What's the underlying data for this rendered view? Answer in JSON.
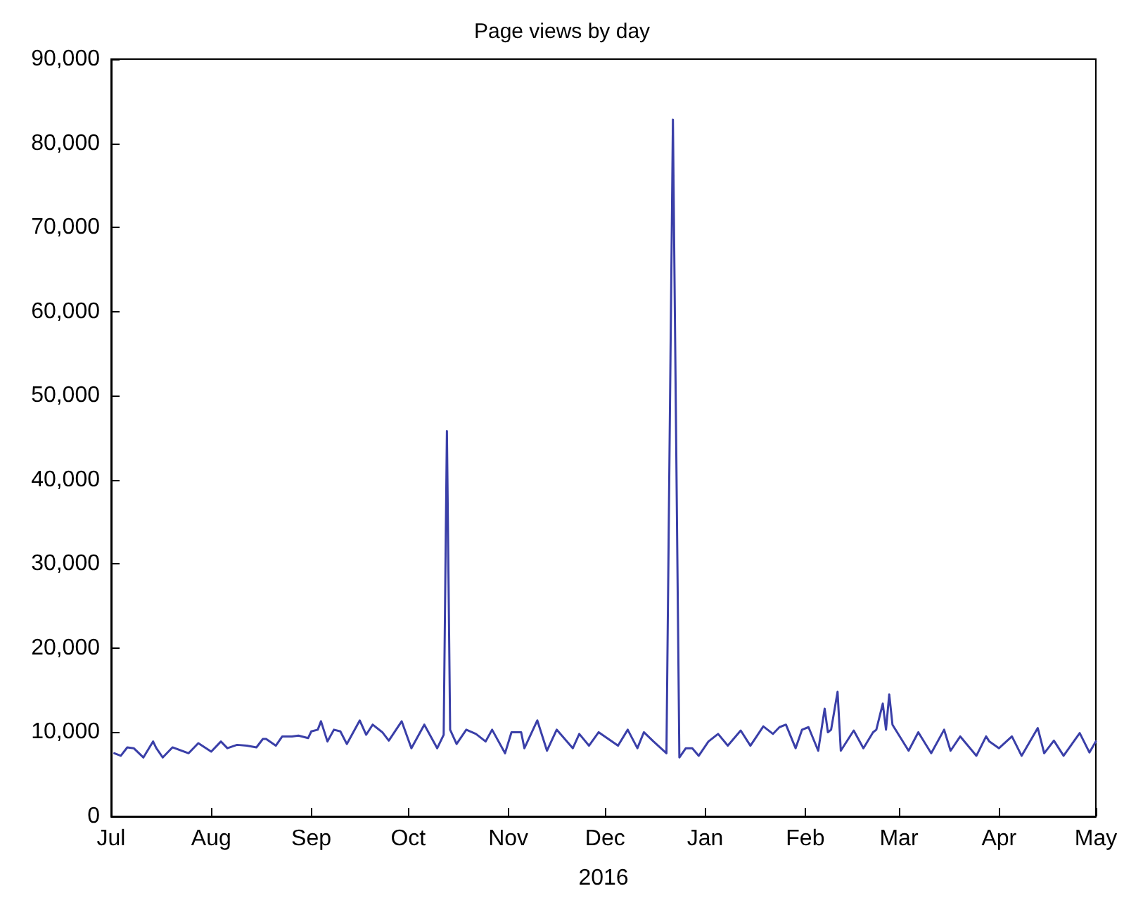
{
  "chart_data": {
    "type": "line",
    "title": "Page views by day",
    "xlabel": "2016",
    "x": [
      "2015-07-02",
      "2015-07-04",
      "2015-07-06",
      "2015-07-08",
      "2015-07-11",
      "2015-07-14",
      "2015-07-15",
      "2015-07-17",
      "2015-07-20",
      "2015-07-25",
      "2015-07-28",
      "2015-08-01",
      "2015-08-04",
      "2015-08-06",
      "2015-08-09",
      "2015-08-12",
      "2015-08-15",
      "2015-08-17",
      "2015-08-18",
      "2015-08-21",
      "2015-08-23",
      "2015-08-26",
      "2015-08-28",
      "2015-08-31",
      "2015-09-01",
      "2015-09-03",
      "2015-09-04",
      "2015-09-06",
      "2015-09-08",
      "2015-09-10",
      "2015-09-12",
      "2015-09-14",
      "2015-09-16",
      "2015-09-18",
      "2015-09-20",
      "2015-09-23",
      "2015-09-25",
      "2015-09-29",
      "2015-10-02",
      "2015-10-06",
      "2015-10-10",
      "2015-10-12",
      "2015-10-13",
      "2015-10-14",
      "2015-10-16",
      "2015-10-19",
      "2015-10-22",
      "2015-10-25",
      "2015-10-27",
      "2015-10-31",
      "2015-11-02",
      "2015-11-05",
      "2015-11-06",
      "2015-11-10",
      "2015-11-13",
      "2015-11-16",
      "2015-11-21",
      "2015-11-23",
      "2015-11-26",
      "2015-11-29",
      "2015-12-05",
      "2015-12-08",
      "2015-12-11",
      "2015-12-13",
      "2015-12-16",
      "2015-12-20",
      "2015-12-22",
      "2015-12-24",
      "2015-12-26",
      "2015-12-28",
      "2015-12-30",
      "2016-01-02",
      "2016-01-05",
      "2016-01-08",
      "2016-01-12",
      "2016-01-15",
      "2016-01-19",
      "2016-01-22",
      "2016-01-24",
      "2016-01-26",
      "2016-01-29",
      "2016-01-31",
      "2016-02-02",
      "2016-02-05",
      "2016-02-07",
      "2016-02-08",
      "2016-02-09",
      "2016-02-11",
      "2016-02-12",
      "2016-02-16",
      "2016-02-19",
      "2016-02-22",
      "2016-02-23",
      "2016-02-25",
      "2016-02-26",
      "2016-02-27",
      "2016-02-28",
      "2016-03-04",
      "2016-03-07",
      "2016-03-11",
      "2016-03-15",
      "2016-03-17",
      "2016-03-20",
      "2016-03-25",
      "2016-03-28",
      "2016-03-29",
      "2016-04-01",
      "2016-04-05",
      "2016-04-08",
      "2016-04-13",
      "2016-04-15",
      "2016-04-18",
      "2016-04-21",
      "2016-04-26",
      "2016-04-29",
      "2016-05-01"
    ],
    "series": [
      {
        "color": "#3a3fa8",
        "values": [
          7500,
          7200,
          8200,
          8100,
          7000,
          8900,
          8100,
          7000,
          8200,
          7500,
          8700,
          7700,
          8900,
          8100,
          8500,
          8400,
          8200,
          9200,
          9200,
          8400,
          9500,
          9500,
          9600,
          9300,
          10100,
          10300,
          11300,
          8900,
          10300,
          10100,
          8600,
          10000,
          11400,
          9700,
          10900,
          10000,
          9000,
          11300,
          8100,
          10900,
          8100,
          9700,
          45800,
          10300,
          8600,
          10300,
          9800,
          8900,
          10300,
          7500,
          10000,
          10000,
          8100,
          11400,
          7800,
          10300,
          8100,
          9800,
          8400,
          10000,
          8400,
          10300,
          8100,
          10000,
          8900,
          7500,
          82800,
          7000,
          8100,
          8100,
          7200,
          8900,
          9800,
          8400,
          10200,
          8400,
          10700,
          9800,
          10600,
          10900,
          8100,
          10300,
          10600,
          7800,
          12800,
          10000,
          10300,
          14800,
          7800,
          10200,
          8100,
          10000,
          10300,
          13400,
          10300,
          14500,
          10900,
          7800,
          10000,
          7500,
          10300,
          7800,
          9500,
          7200,
          9500,
          8900,
          8100,
          9500,
          7200,
          10500,
          7500,
          9000,
          7200,
          9900,
          7600,
          8900
        ]
      }
    ],
    "xlim": [
      "2015-07-01",
      "2016-05-01"
    ],
    "xticks": [
      {
        "value": "2015-07-01",
        "label": "Jul"
      },
      {
        "value": "2015-08-01",
        "label": "Aug"
      },
      {
        "value": "2015-09-01",
        "label": "Sep"
      },
      {
        "value": "2015-10-01",
        "label": "Oct"
      },
      {
        "value": "2015-11-01",
        "label": "Nov"
      },
      {
        "value": "2015-12-01",
        "label": "Dec"
      },
      {
        "value": "2016-01-01",
        "label": "Jan"
      },
      {
        "value": "2016-02-01",
        "label": "Feb"
      },
      {
        "value": "2016-03-01",
        "label": "Mar"
      },
      {
        "value": "2016-04-01",
        "label": "Apr"
      },
      {
        "value": "2016-05-01",
        "label": "May"
      }
    ],
    "ylim": [
      0,
      90000
    ],
    "yticks": [
      0,
      {
        "value": 10000,
        "label": "10,000"
      },
      {
        "value": 20000,
        "label": "20,000"
      },
      {
        "value": 30000,
        "label": "30,000"
      },
      {
        "value": 40000,
        "label": "40,000"
      },
      {
        "value": 50000,
        "label": "50,000"
      },
      {
        "value": 60000,
        "label": "60,000"
      },
      {
        "value": 70000,
        "label": "70,000"
      },
      {
        "value": 80000,
        "label": "80,000"
      },
      {
        "value": 90000,
        "label": "90,000"
      }
    ],
    "grid": false,
    "marker": "none",
    "line_style": "solid"
  }
}
